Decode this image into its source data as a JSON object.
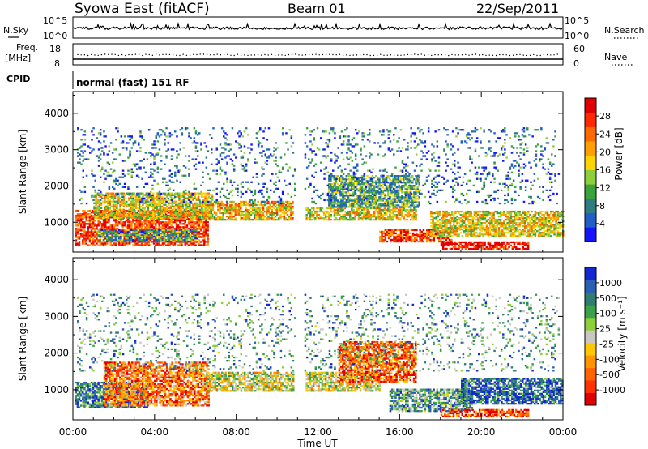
{
  "header": {
    "title_left": "Syowa East (fitACF)",
    "title_center": "Beam 01",
    "title_right": "22/Sep/2011"
  },
  "strip_labels": {
    "nsky": "N.Sky",
    "nsky_top": "10^5",
    "nsky_bottom": "10^0",
    "nsearch": "N.Search",
    "nsearch_top": "10^5",
    "nsearch_bottom": "10^0",
    "freq_line1": "Freq.",
    "freq_line2": "[MHz]",
    "freq_top": "18",
    "freq_bottom": "8",
    "nave": "Nave",
    "nave_top": "60",
    "nave_bottom": "0",
    "cpid": "CPID",
    "cpid_value": "normal (fast) 151 RF"
  },
  "x_axis": {
    "label": "Time UT",
    "ticks": [
      "00:00",
      "04:00",
      "08:00",
      "12:00",
      "16:00",
      "20:00",
      "00:00"
    ]
  },
  "chart_data": [
    {
      "type": "heatmap",
      "name": "power",
      "ylabel": "Slant Range [km]",
      "ylim": [
        180,
        4600
      ],
      "yticks": [
        1000,
        2000,
        3000,
        4000
      ],
      "xlim_hours": [
        0,
        24
      ],
      "colorbar": {
        "label": "Power [dB]",
        "ticks": [
          "4",
          "8",
          "12",
          "16",
          "20",
          "24",
          "28"
        ],
        "colors": [
          "#1414ff",
          "#1e5fc8",
          "#2f7d83",
          "#3aa33c",
          "#8fd03a",
          "#ffd400",
          "#ffa000",
          "#ff6a00",
          "#ff2800",
          "#e10000"
        ]
      },
      "echo_regions": [
        {
          "t": [
            0.1,
            6.6
          ],
          "range": [
            350,
            1300
          ],
          "level": 0.85
        },
        {
          "t": [
            1.0,
            6.8
          ],
          "range": [
            1100,
            1800
          ],
          "level": 0.55
        },
        {
          "t": [
            6.3,
            10.8
          ],
          "range": [
            1050,
            1550
          ],
          "level": 0.6
        },
        {
          "t": [
            1.2,
            6.0
          ],
          "range": [
            450,
            800
          ],
          "level": 0.3
        },
        {
          "t": [
            11.4,
            16.8
          ],
          "range": [
            1050,
            1400
          ],
          "level": 0.55
        },
        {
          "t": [
            12.5,
            17.0
          ],
          "range": [
            1400,
            2300
          ],
          "level": 0.35
        },
        {
          "t": [
            15.0,
            18.5
          ],
          "range": [
            450,
            800
          ],
          "level": 0.85
        },
        {
          "t": [
            18.0,
            22.3
          ],
          "range": [
            250,
            450
          ],
          "level": 0.95
        },
        {
          "t": [
            17.5,
            24.0
          ],
          "range": [
            600,
            1300
          ],
          "level": 0.55
        },
        {
          "t": [
            0.2,
            23.8
          ],
          "range": [
            1500,
            3600
          ],
          "level": 0.2
        }
      ]
    },
    {
      "type": "heatmap",
      "name": "velocity",
      "ylabel": "Slant Range [km]",
      "ylim": [
        180,
        4600
      ],
      "yticks": [
        1000,
        2000,
        3000,
        4000
      ],
      "xlim_hours": [
        0,
        24
      ],
      "colorbar": {
        "label": "Velocity [m s⁻¹]",
        "ticks": [
          "1000",
          "500",
          "100",
          "25",
          "-25",
          "-100",
          "-500",
          "-1000"
        ],
        "colors": [
          "#1428d2",
          "#2a5fb4",
          "#2f7d6e",
          "#3aa34a",
          "#8fd03a",
          "#c8c8c0",
          "#ffc800",
          "#ff9600",
          "#ff6400",
          "#ff3200",
          "#e10000"
        ]
      },
      "echo_regions": [
        {
          "t": [
            0.1,
            3.6
          ],
          "range": [
            500,
            1200
          ],
          "level": 0.2
        },
        {
          "t": [
            1.5,
            6.6
          ],
          "range": [
            550,
            1750
          ],
          "level": 0.75
        },
        {
          "t": [
            6.5,
            10.8
          ],
          "range": [
            950,
            1450
          ],
          "level": 0.5
        },
        {
          "t": [
            11.4,
            15.0
          ],
          "range": [
            950,
            1450
          ],
          "level": 0.5
        },
        {
          "t": [
            13.0,
            16.8
          ],
          "range": [
            1200,
            2300
          ],
          "level": 0.8
        },
        {
          "t": [
            15.5,
            19.5
          ],
          "range": [
            400,
            1000
          ],
          "level": 0.3
        },
        {
          "t": [
            18.0,
            22.3
          ],
          "range": [
            250,
            450
          ],
          "level": 0.85
        },
        {
          "t": [
            19.0,
            24.0
          ],
          "range": [
            600,
            1300
          ],
          "level": 0.15
        },
        {
          "t": [
            0.2,
            23.8
          ],
          "range": [
            1500,
            3600
          ],
          "level": 0.3
        }
      ]
    }
  ],
  "colors": {
    "frame": "#000000",
    "background": "#ffffff",
    "gap_fill": "#ffffff"
  }
}
